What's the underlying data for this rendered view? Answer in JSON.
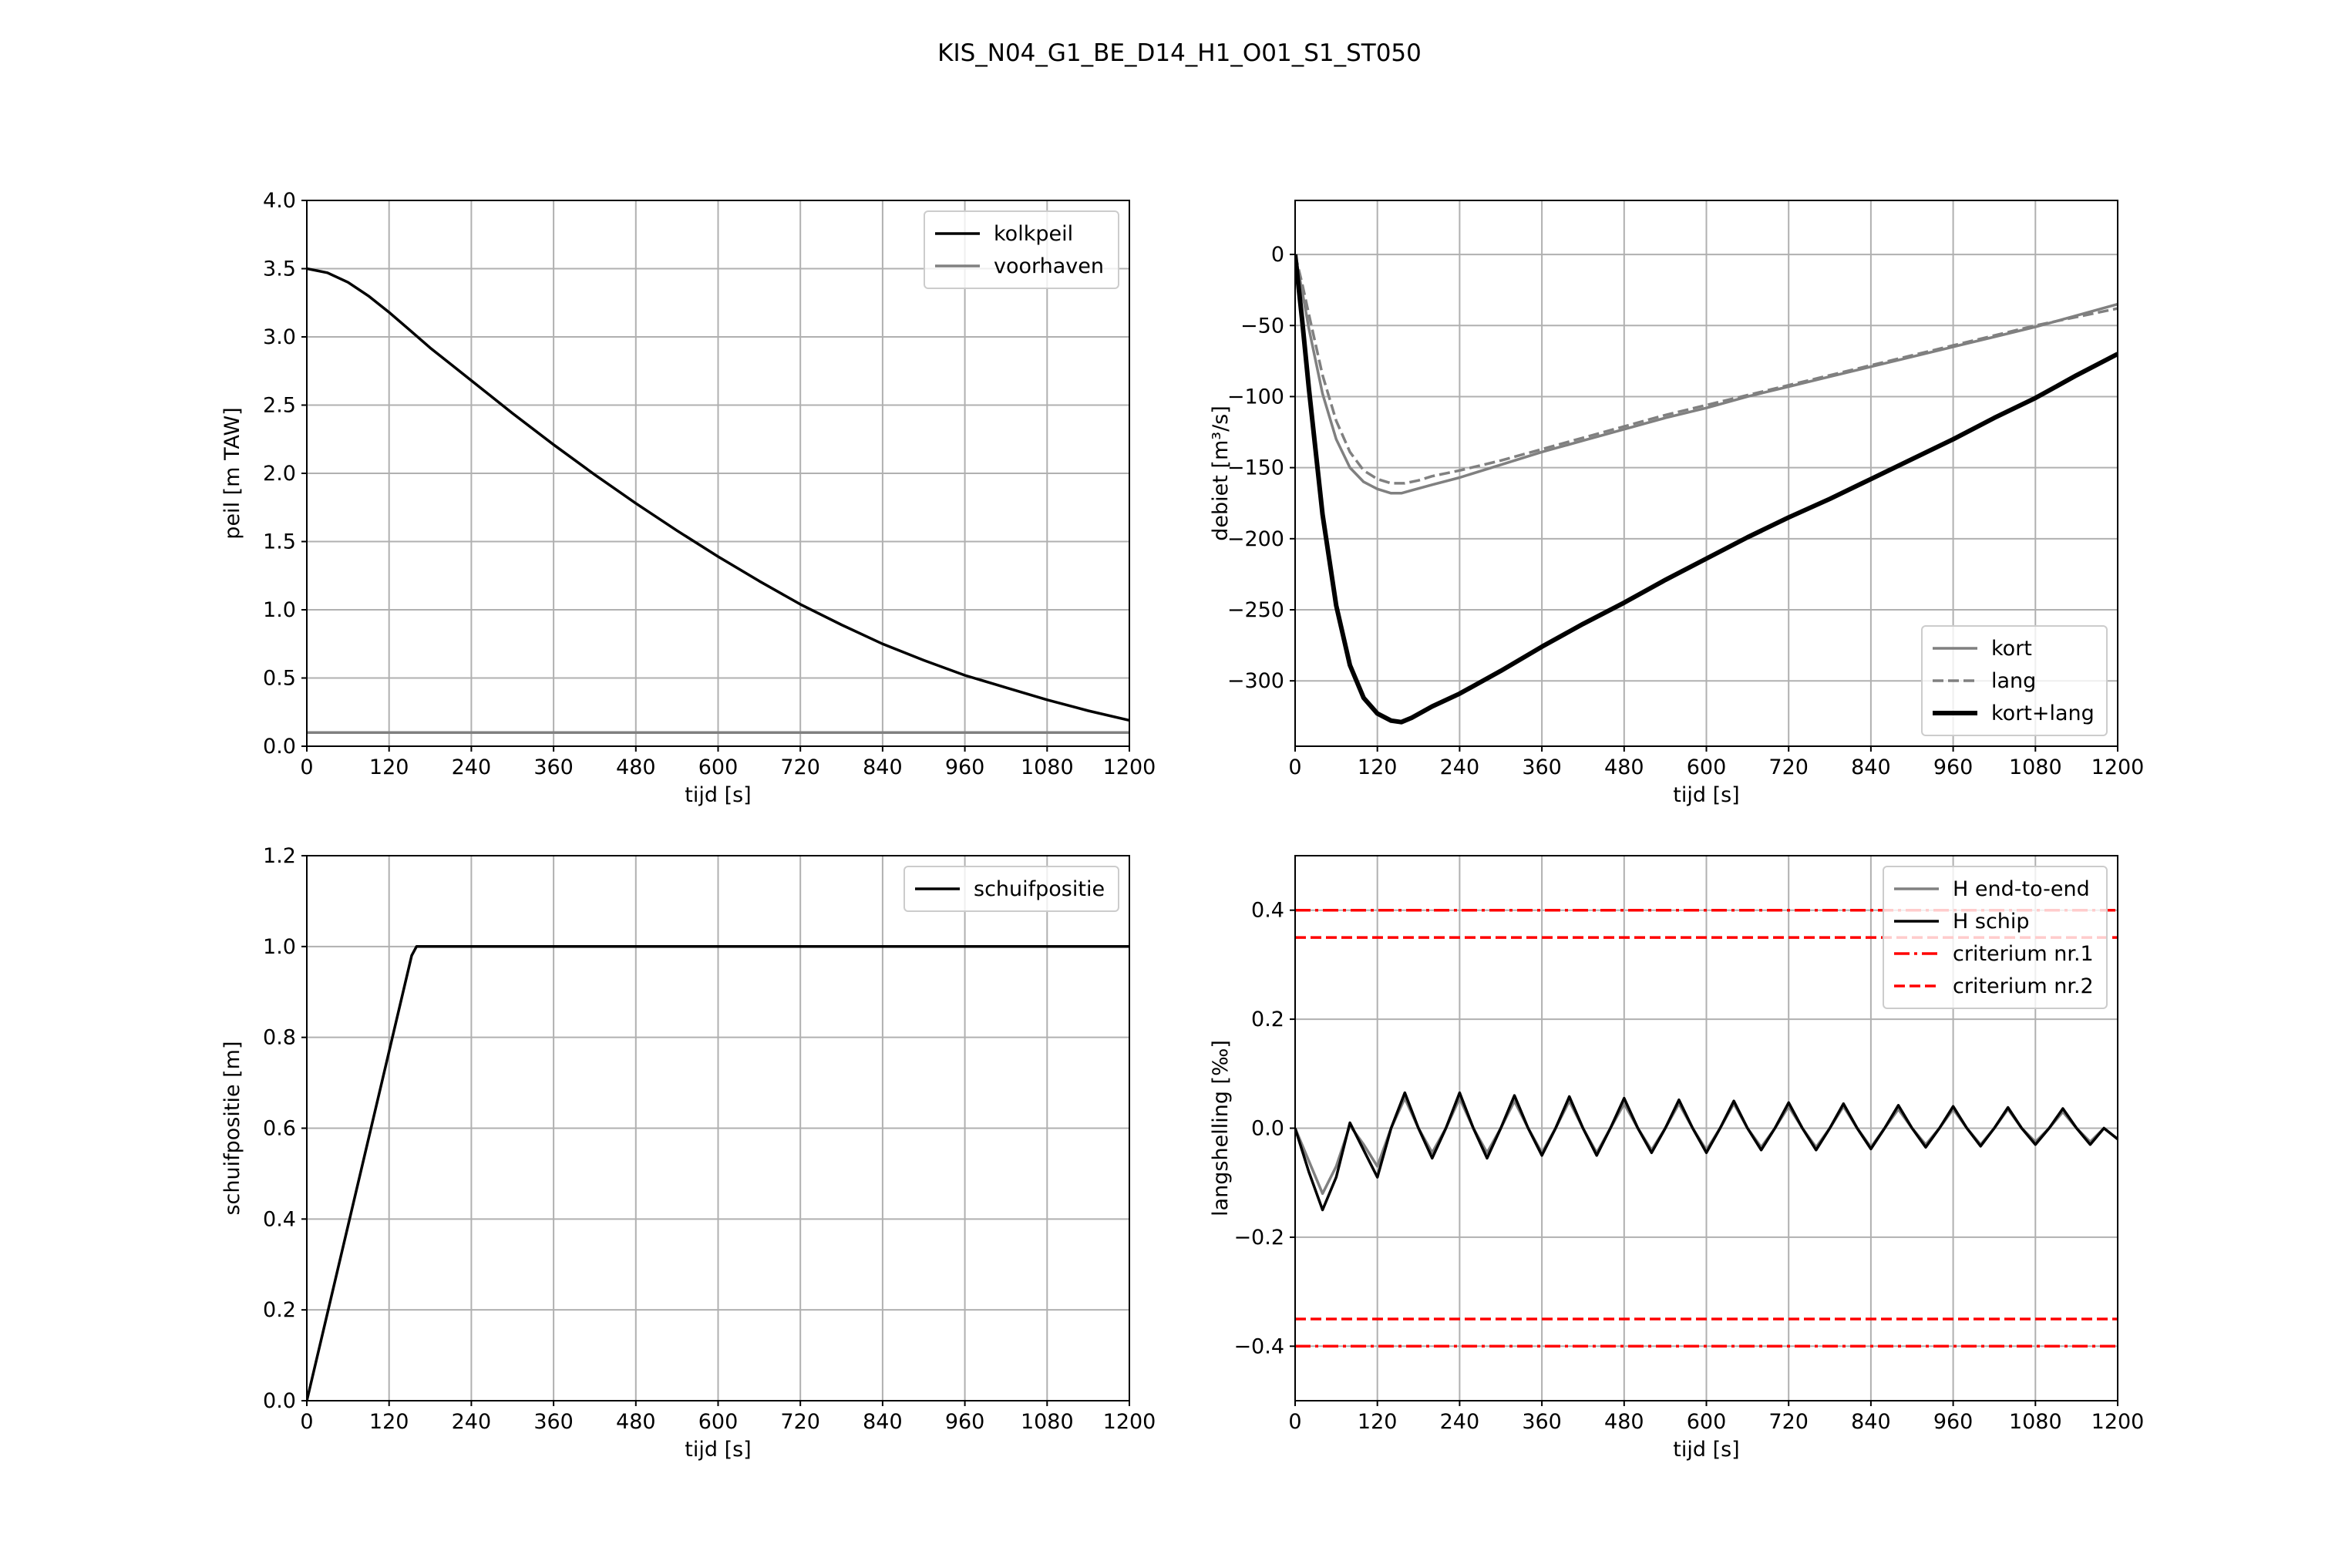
{
  "title": "KIS_N04_G1_BE_D14_H1_O01_S1_ST050",
  "colors": {
    "black": "#000000",
    "gray": "#808080",
    "red": "#ff0000"
  },
  "chart_data": [
    {
      "id": "peil",
      "type": "line",
      "xlabel": "tijd [s]",
      "ylabel": "peil [m TAW]",
      "xlim": [
        0,
        1200
      ],
      "ylim": [
        0,
        4
      ],
      "xticks": [
        0,
        120,
        240,
        360,
        480,
        600,
        720,
        840,
        960,
        1080,
        1200
      ],
      "yticks": [
        0,
        0.5,
        1,
        1.5,
        2,
        2.5,
        3,
        3.5,
        4
      ],
      "ytick_decimals": 1,
      "grid": true,
      "legend": "upper right",
      "series": [
        {
          "name": "kolkpeil",
          "color": "#000000",
          "width": 3.5,
          "dash": "solid",
          "x": [
            0,
            30,
            60,
            90,
            120,
            150,
            180,
            210,
            240,
            300,
            360,
            420,
            480,
            540,
            600,
            660,
            720,
            780,
            840,
            900,
            960,
            1020,
            1080,
            1140,
            1200
          ],
          "y": [
            3.5,
            3.47,
            3.4,
            3.3,
            3.18,
            3.05,
            2.92,
            2.8,
            2.68,
            2.44,
            2.21,
            1.99,
            1.78,
            1.58,
            1.39,
            1.21,
            1.04,
            0.89,
            0.75,
            0.63,
            0.52,
            0.43,
            0.34,
            0.26,
            0.19
          ]
        },
        {
          "name": "voorhaven",
          "color": "#808080",
          "width": 3.5,
          "dash": "solid",
          "x": [
            0,
            1200
          ],
          "y": [
            0.1,
            0.1
          ]
        }
      ]
    },
    {
      "id": "debiet",
      "type": "line",
      "xlabel": "tijd [s]",
      "ylabel": "debiet [m³/s]",
      "xlim": [
        0,
        1200
      ],
      "ylim": [
        -346,
        38
      ],
      "xticks": [
        0,
        120,
        240,
        360,
        480,
        600,
        720,
        840,
        960,
        1080,
        1200
      ],
      "yticks": [
        -300,
        -250,
        -200,
        -150,
        -100,
        -50,
        0
      ],
      "ytick_decimals": 0,
      "grid": true,
      "legend": "lower right",
      "series": [
        {
          "name": "kort",
          "color": "#808080",
          "width": 3.5,
          "dash": "solid",
          "x": [
            0,
            10,
            20,
            40,
            60,
            80,
            100,
            120,
            140,
            155,
            170,
            200,
            240,
            300,
            360,
            420,
            480,
            540,
            600,
            660,
            720,
            780,
            840,
            900,
            960,
            1020,
            1080,
            1140,
            1200
          ],
          "y": [
            0,
            -25,
            -52,
            -98,
            -130,
            -150,
            -160,
            -165,
            -168,
            -168,
            -166,
            -162,
            -157,
            -148,
            -139,
            -131,
            -123,
            -115,
            -108,
            -100,
            -93,
            -86,
            -79,
            -72,
            -65,
            -58,
            -51,
            -43,
            -35
          ]
        },
        {
          "name": "lang",
          "color": "#808080",
          "width": 3.5,
          "dash": "dashed",
          "x": [
            0,
            10,
            20,
            40,
            60,
            80,
            100,
            120,
            140,
            160,
            180,
            200,
            240,
            300,
            360,
            420,
            480,
            540,
            600,
            660,
            720,
            780,
            840,
            900,
            960,
            1020,
            1080,
            1140,
            1200
          ],
          "y": [
            0,
            -20,
            -42,
            -85,
            -117,
            -139,
            -152,
            -158,
            -161,
            -161,
            -159,
            -156,
            -152,
            -145,
            -137,
            -129,
            -121,
            -113,
            -106,
            -99,
            -92,
            -85,
            -78,
            -71,
            -64,
            -57,
            -50,
            -44,
            -38
          ]
        },
        {
          "name": "kort+lang",
          "color": "#000000",
          "width": 6,
          "dash": "solid",
          "x": [
            0,
            10,
            20,
            40,
            60,
            80,
            100,
            120,
            140,
            155,
            170,
            200,
            240,
            300,
            360,
            420,
            480,
            540,
            600,
            660,
            720,
            780,
            840,
            900,
            960,
            1020,
            1080,
            1140,
            1200
          ],
          "y": [
            0,
            -45,
            -94,
            -183,
            -247,
            -289,
            -312,
            -323,
            -328,
            -329,
            -326,
            -318,
            -309,
            -293,
            -276,
            -260,
            -245,
            -229,
            -214,
            -199,
            -185,
            -172,
            -158,
            -144,
            -130,
            -115,
            -101,
            -85,
            -70
          ]
        }
      ]
    },
    {
      "id": "schuifpositie",
      "type": "line",
      "xlabel": "tijd [s]",
      "ylabel": "schuifpositie [m]",
      "xlim": [
        0,
        1200
      ],
      "ylim": [
        0,
        1.2
      ],
      "xticks": [
        0,
        120,
        240,
        360,
        480,
        600,
        720,
        840,
        960,
        1080,
        1200
      ],
      "yticks": [
        0,
        0.2,
        0.4,
        0.6,
        0.8,
        1,
        1.2
      ],
      "ytick_decimals": 1,
      "grid": true,
      "legend": "upper right",
      "series": [
        {
          "name": "schuifpositie",
          "color": "#000000",
          "width": 3.5,
          "dash": "solid",
          "x": [
            0,
            153,
            160,
            1200
          ],
          "y": [
            0.0,
            0.98,
            1.0,
            1.0
          ]
        }
      ]
    },
    {
      "id": "langshelling",
      "type": "line",
      "xlabel": "tijd [s]",
      "ylabel": "langshelling [‰]",
      "xlim": [
        0,
        1200
      ],
      "ylim": [
        -0.5,
        0.5
      ],
      "xticks": [
        0,
        120,
        240,
        360,
        480,
        600,
        720,
        840,
        960,
        1080,
        1200
      ],
      "yticks": [
        -0.4,
        -0.2,
        0,
        0.2,
        0.4
      ],
      "ytick_decimals": 1,
      "grid": true,
      "legend": "upper right",
      "series": [
        {
          "name": "H end-to-end",
          "color": "#808080",
          "width": 3.5,
          "dash": "solid",
          "x": [
            0,
            20,
            40,
            60,
            80,
            100,
            120,
            140,
            160,
            180,
            200,
            220,
            240,
            260,
            280,
            300,
            320,
            340,
            360,
            380,
            400,
            420,
            440,
            460,
            480,
            500,
            520,
            540,
            560,
            580,
            600,
            620,
            640,
            660,
            680,
            700,
            720,
            740,
            760,
            780,
            800,
            820,
            840,
            860,
            880,
            900,
            920,
            940,
            960,
            980,
            1000,
            1020,
            1040,
            1060,
            1080,
            1100,
            1120,
            1140,
            1160,
            1180,
            1200
          ],
          "y": [
            0.0,
            -0.06,
            -0.12,
            -0.07,
            0.005,
            -0.03,
            -0.07,
            0.0,
            0.055,
            0.0,
            -0.045,
            0.0,
            0.055,
            0.0,
            -0.045,
            0.0,
            0.05,
            0.0,
            -0.045,
            0.0,
            0.05,
            0.0,
            -0.045,
            0.0,
            0.045,
            0.0,
            -0.04,
            0.0,
            0.045,
            0.0,
            -0.04,
            0.0,
            0.045,
            0.0,
            -0.035,
            0.0,
            0.04,
            0.0,
            -0.035,
            0.0,
            0.04,
            0.0,
            -0.035,
            0.0,
            0.035,
            0.0,
            -0.03,
            0.0,
            0.035,
            0.0,
            -0.03,
            0.0,
            0.035,
            0.0,
            -0.025,
            0.0,
            0.03,
            0.0,
            -0.025,
            0.0,
            -0.02
          ]
        },
        {
          "name": "H schip",
          "color": "#000000",
          "width": 3.5,
          "dash": "solid",
          "x": [
            0,
            20,
            40,
            60,
            80,
            100,
            120,
            140,
            160,
            180,
            200,
            220,
            240,
            260,
            280,
            300,
            320,
            340,
            360,
            380,
            400,
            420,
            440,
            460,
            480,
            500,
            520,
            540,
            560,
            580,
            600,
            620,
            640,
            660,
            680,
            700,
            720,
            740,
            760,
            780,
            800,
            820,
            840,
            860,
            880,
            900,
            920,
            940,
            960,
            980,
            1000,
            1020,
            1040,
            1060,
            1080,
            1100,
            1120,
            1140,
            1160,
            1180,
            1200
          ],
          "y": [
            0.0,
            -0.08,
            -0.15,
            -0.09,
            0.01,
            -0.04,
            -0.09,
            0.0,
            0.065,
            0.0,
            -0.055,
            0.0,
            0.065,
            0.0,
            -0.055,
            0.0,
            0.06,
            0.0,
            -0.05,
            0.0,
            0.058,
            0.0,
            -0.05,
            0.0,
            0.055,
            0.0,
            -0.045,
            0.0,
            0.052,
            0.0,
            -0.045,
            0.0,
            0.05,
            0.0,
            -0.04,
            0.0,
            0.047,
            0.0,
            -0.04,
            0.0,
            0.045,
            0.0,
            -0.038,
            0.0,
            0.042,
            0.0,
            -0.035,
            0.0,
            0.04,
            0.0,
            -0.033,
            0.0,
            0.038,
            0.0,
            -0.03,
            0.0,
            0.036,
            0.0,
            -0.03,
            0.0,
            -0.02
          ]
        },
        {
          "name": "criterium nr.1",
          "color": "#ff0000",
          "width": 3.5,
          "dash": "dashdot",
          "x": [
            0,
            1200
          ],
          "y": [
            0.4,
            0.4
          ]
        },
        {
          "name": "criterium nr.2",
          "color": "#ff0000",
          "width": 3.5,
          "dash": "dashed",
          "x": [
            0,
            1200
          ],
          "y": [
            0.35,
            0.35
          ]
        }
      ],
      "mirror_series": [
        {
          "name": "criterium nr.1",
          "color": "#ff0000",
          "width": 3.5,
          "dash": "dashdot",
          "x": [
            0,
            1200
          ],
          "y": [
            -0.4,
            -0.4
          ]
        },
        {
          "name": "criterium nr.2",
          "color": "#ff0000",
          "width": 3.5,
          "dash": "dashed",
          "x": [
            0,
            1200
          ],
          "y": [
            -0.35,
            -0.35
          ]
        }
      ]
    }
  ]
}
